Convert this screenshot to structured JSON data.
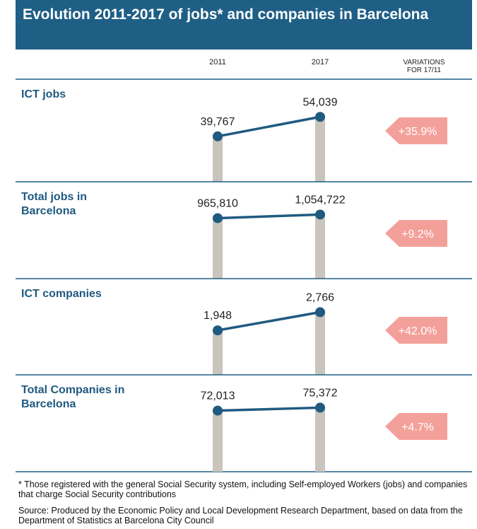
{
  "header": {
    "title": "Evolution 2011-2017 of jobs* and companies in Barcelona",
    "years": [
      "2011",
      "2017"
    ],
    "variations": [
      "VARIATIONS",
      "FOR 17/11"
    ]
  },
  "chart_data": [
    {
      "type": "slope",
      "title": "ICT jobs",
      "values": [
        39767,
        54039
      ],
      "value_labels": [
        "39,767",
        "54,039"
      ],
      "annotation": "+35.9%",
      "ylim": [
        6500,
        63500
      ],
      "color": "#1f5a80"
    },
    {
      "type": "slope",
      "title": "Total jobs in Barcelona",
      "values": [
        965810,
        1054722
      ],
      "value_labels": [
        "965,810",
        "1,054,722"
      ],
      "annotation": "+9.2%",
      "ylim": [
        -510000,
        1250000
      ],
      "color": "#1f5a80"
    },
    {
      "type": "slope",
      "title": "ICT companies",
      "values": [
        1948,
        2766
      ],
      "value_labels": [
        "1,948",
        "2,766"
      ],
      "annotation": "+42.0%",
      "ylim": [
        -50,
        3160
      ],
      "color": "#1f5a80"
    },
    {
      "type": "slope",
      "title": "Total Companies in Barcelona",
      "values": [
        72013,
        75372
      ],
      "value_labels": [
        "72,013",
        "75,372"
      ],
      "annotation": "+4.7%",
      "ylim": [
        2300,
        84600
      ],
      "color": "#1f5a80"
    }
  ],
  "footer": {
    "note": "* Those registered with the general Social Security system, including Self-employed Workers (jobs) and companies that charge Social Security contributions",
    "source": "Source: Produced by the Economic Policy and Local Development Research Department, based on data from the Department of Statistics at Barcelona City Council"
  }
}
